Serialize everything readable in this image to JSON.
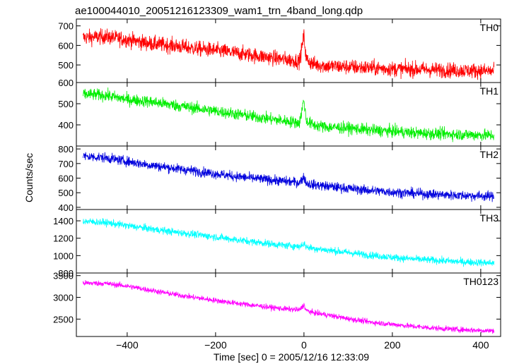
{
  "chart_data": {
    "type": "line",
    "title": "ae100044010_20051216123309_wam1_trn_4band_long.qdp",
    "xlabel": "Time [sec] 0 = 2005/12/16 12:33:09",
    "ylabel": "Counts/sec",
    "xlim": [
      -515,
      445
    ],
    "x_ticks": [
      -400,
      -200,
      0,
      200,
      400
    ],
    "x_tick_labels": [
      "−400",
      "−200",
      "0",
      "200",
      "400"
    ],
    "grid": false,
    "panels": [
      {
        "name": "TH0",
        "color": "#ff0000",
        "ylim": [
          410,
          735
        ],
        "y_ticks": [
          500,
          600,
          700
        ],
        "x": [
          -500,
          -450,
          -400,
          -350,
          -300,
          -250,
          -200,
          -150,
          -100,
          -50,
          -10,
          0,
          5,
          20,
          50,
          100,
          150,
          200,
          250,
          300,
          350,
          400,
          430
        ],
        "y": [
          640,
          645,
          630,
          610,
          600,
          585,
          575,
          560,
          545,
          530,
          520,
          650,
          530,
          505,
          495,
          490,
          485,
          480,
          478,
          475,
          472,
          470,
          468
        ],
        "noise": 28
      },
      {
        "name": "TH1",
        "color": "#00ee00",
        "ylim": [
          300,
          600
        ],
        "y_ticks": [
          400,
          500,
          600
        ],
        "x": [
          -500,
          -450,
          -400,
          -350,
          -300,
          -250,
          -200,
          -150,
          -100,
          -50,
          -10,
          0,
          5,
          20,
          50,
          100,
          150,
          200,
          250,
          300,
          350,
          400,
          430
        ],
        "y": [
          545,
          540,
          520,
          510,
          495,
          480,
          465,
          450,
          435,
          420,
          410,
          520,
          420,
          400,
          390,
          385,
          375,
          370,
          362,
          358,
          355,
          352,
          350
        ],
        "noise": 20
      },
      {
        "name": "TH2",
        "color": "#0000dd",
        "ylim": [
          385,
          820
        ],
        "y_ticks": [
          400,
          500,
          600,
          700,
          800
        ],
        "x": [
          -500,
          -450,
          -400,
          -350,
          -300,
          -250,
          -200,
          -150,
          -100,
          -50,
          -10,
          0,
          5,
          20,
          50,
          100,
          150,
          200,
          250,
          300,
          350,
          400,
          430
        ],
        "y": [
          750,
          740,
          715,
          690,
          670,
          650,
          630,
          610,
          595,
          580,
          570,
          610,
          565,
          555,
          545,
          530,
          515,
          505,
          495,
          488,
          482,
          478,
          475
        ],
        "noise": 24
      },
      {
        "name": "TH3",
        "color": "#00ffff",
        "ylim": [
          800,
          1530
        ],
        "y_ticks": [
          800,
          1000,
          1200,
          1400
        ],
        "x": [
          -500,
          -450,
          -400,
          -350,
          -300,
          -250,
          -200,
          -150,
          -100,
          -50,
          -10,
          0,
          5,
          20,
          50,
          100,
          150,
          200,
          250,
          300,
          350,
          400,
          430
        ],
        "y": [
          1395,
          1380,
          1345,
          1310,
          1275,
          1245,
          1215,
          1180,
          1150,
          1120,
          1105,
          1140,
          1100,
          1085,
          1065,
          1035,
          1005,
          980,
          960,
          945,
          930,
          920,
          915
        ],
        "noise": 30
      },
      {
        "name": "TH0123",
        "color": "#ff00ff",
        "ylim": [
          2100,
          3560
        ],
        "y_ticks": [
          2500,
          3000,
          3500
        ],
        "x": [
          -500,
          -450,
          -400,
          -350,
          -300,
          -250,
          -200,
          -150,
          -100,
          -50,
          -10,
          0,
          5,
          20,
          50,
          100,
          150,
          200,
          250,
          300,
          350,
          400,
          430
        ],
        "y": [
          3330,
          3320,
          3260,
          3170,
          3080,
          3000,
          2930,
          2860,
          2800,
          2740,
          2710,
          2830,
          2700,
          2650,
          2600,
          2510,
          2430,
          2380,
          2330,
          2290,
          2260,
          2240,
          2230
        ],
        "noise": 45
      }
    ]
  }
}
